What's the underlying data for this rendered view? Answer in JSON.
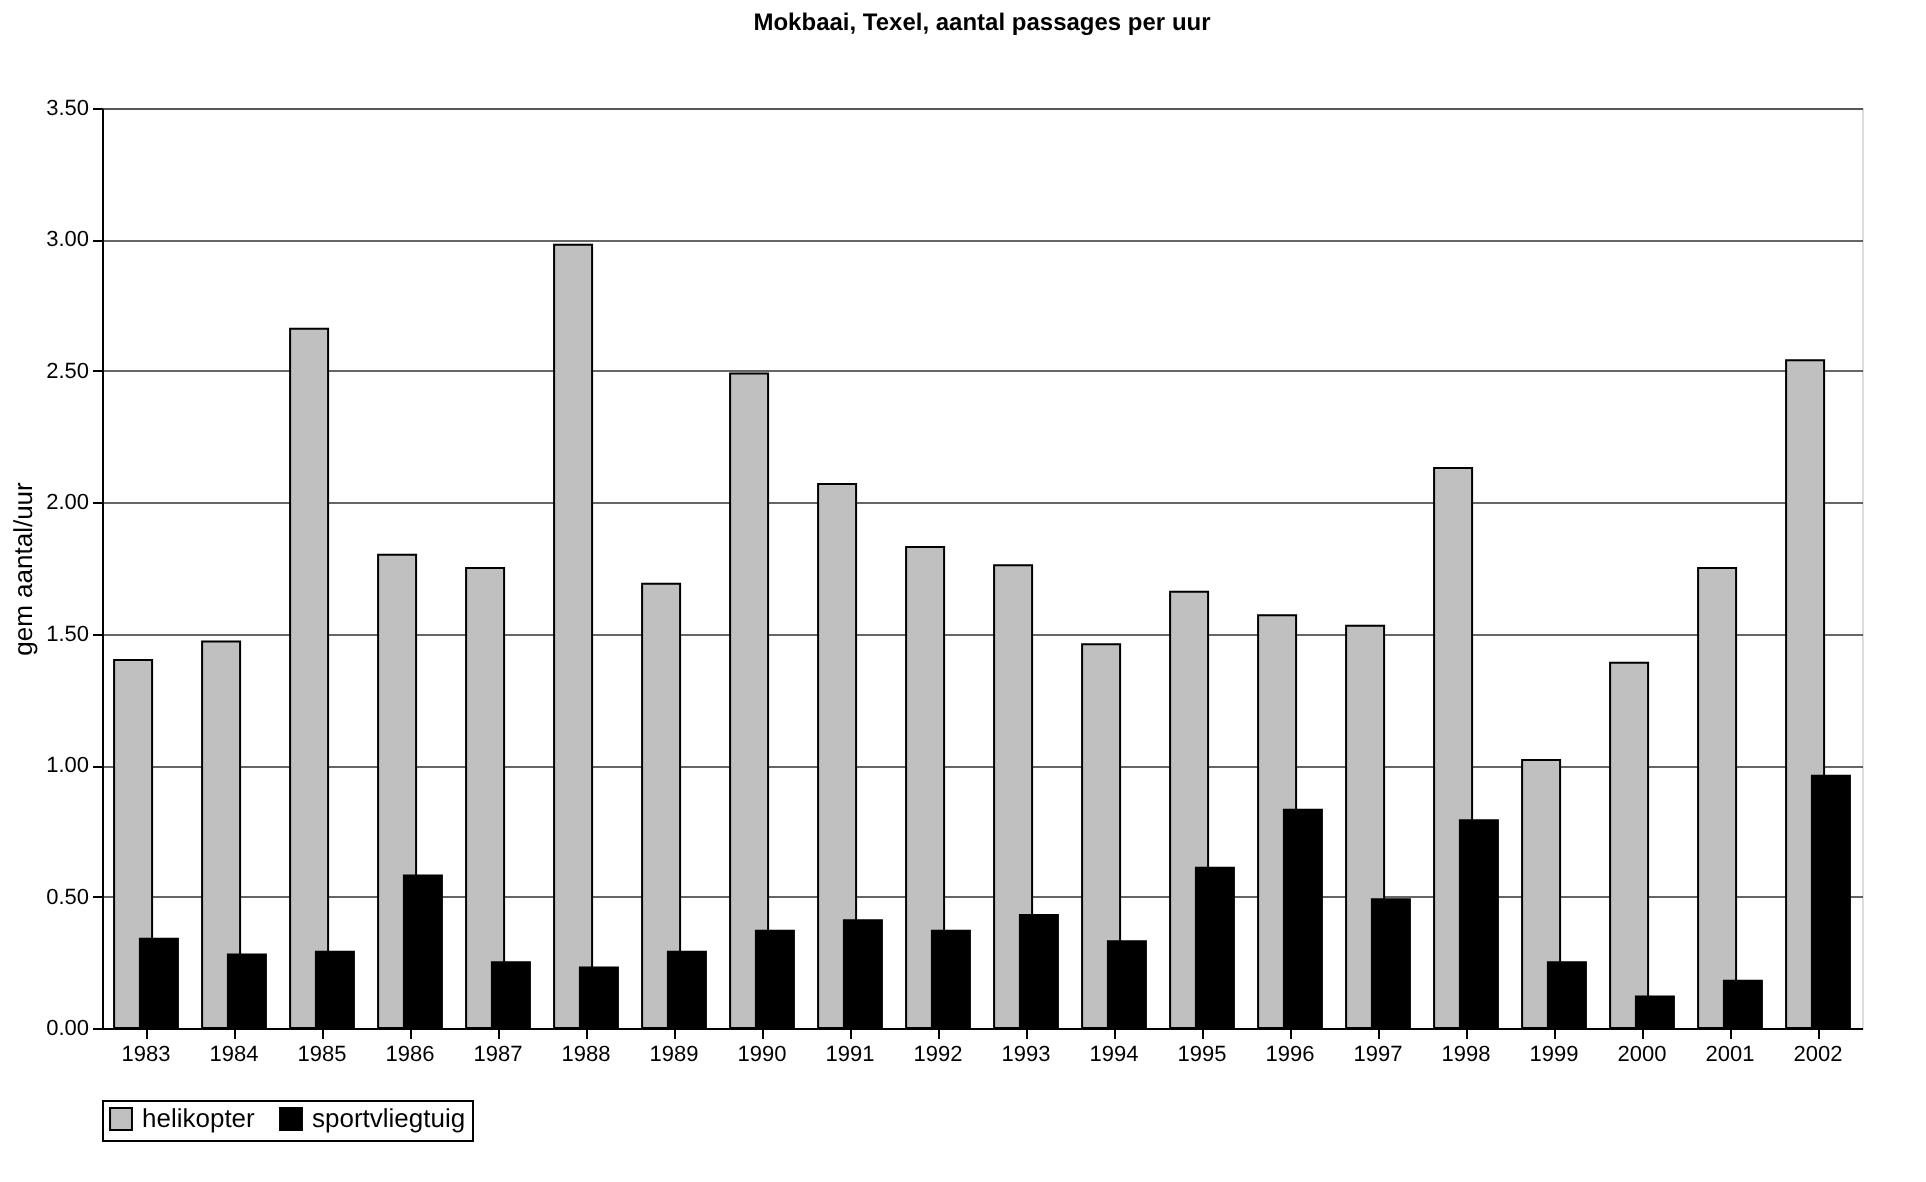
{
  "chart_data": {
    "type": "bar",
    "title": "Mokbaai, Texel, aantal passages per uur",
    "ylabel": "gem aantal/uur",
    "categories": [
      "1983",
      "1984",
      "1985",
      "1986",
      "1987",
      "1988",
      "1989",
      "1990",
      "1991",
      "1992",
      "1993",
      "1994",
      "1995",
      "1996",
      "1997",
      "1998",
      "1999",
      "2000",
      "2001",
      "2002"
    ],
    "series": [
      {
        "name": "helikopter",
        "color": "#c0c0c0",
        "values": [
          1.4,
          1.47,
          2.66,
          1.8,
          1.75,
          2.98,
          1.69,
          2.49,
          2.07,
          1.83,
          1.76,
          1.46,
          1.66,
          1.57,
          1.53,
          2.13,
          1.02,
          1.39,
          1.75,
          2.54
        ]
      },
      {
        "name": "sportvliegtuig",
        "color": "#000000",
        "values": [
          0.34,
          0.28,
          0.29,
          0.58,
          0.25,
          0.23,
          0.29,
          0.37,
          0.41,
          0.37,
          0.43,
          0.33,
          0.61,
          0.83,
          0.49,
          0.79,
          0.25,
          0.12,
          0.18,
          0.96
        ]
      }
    ],
    "ylim": [
      0,
      3.5
    ],
    "yticks": [
      {
        "value": 0,
        "label": "0.00"
      },
      {
        "value": 0.5,
        "label": "0.50"
      },
      {
        "value": 1,
        "label": "1.00"
      },
      {
        "value": 1.5,
        "label": "1.50"
      },
      {
        "value": 2,
        "label": "2.00"
      },
      {
        "value": 2.5,
        "label": "2.50"
      },
      {
        "value": 3,
        "label": "3.00"
      },
      {
        "value": 3.5,
        "label": "3.50"
      }
    ],
    "grid": "y",
    "legend": "bottom"
  }
}
